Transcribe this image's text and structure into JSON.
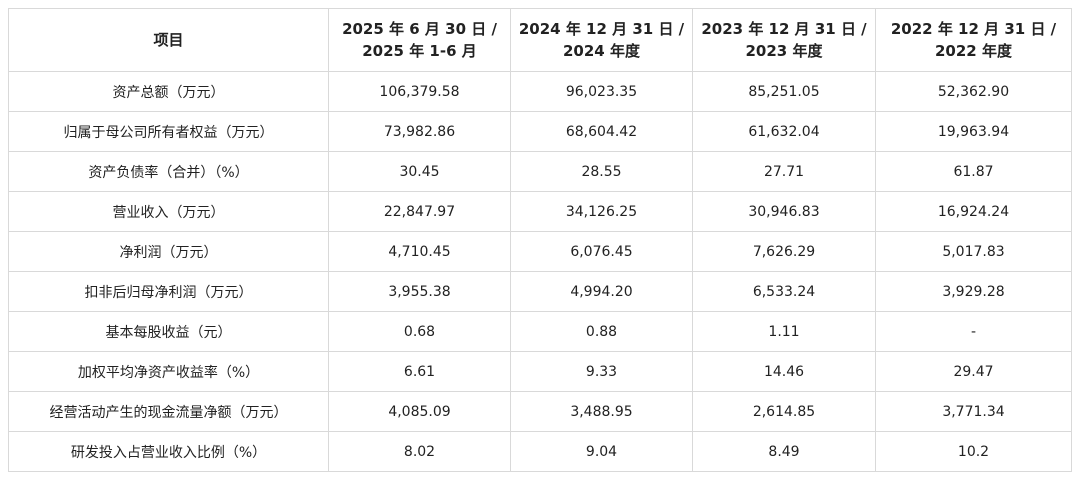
{
  "table": {
    "header": [
      [
        "项目"
      ],
      [
        "2025 年 6 月 30 日 /",
        "2025 年 1-6 月"
      ],
      [
        "2024 年 12 月 31 日 /",
        "2024 年度"
      ],
      [
        "2023 年 12 月 31 日 /",
        "2023 年度"
      ],
      [
        "2022 年 12 月 31 日 /",
        "2022 年度"
      ]
    ],
    "rows": [
      [
        "资产总额（万元）",
        "106,379.58",
        "96,023.35",
        "85,251.05",
        "52,362.90"
      ],
      [
        "归属于母公司所有者权益（万元）",
        "73,982.86",
        "68,604.42",
        "61,632.04",
        "19,963.94"
      ],
      [
        "资产负债率（合并）（%）",
        "30.45",
        "28.55",
        "27.71",
        "61.87"
      ],
      [
        "营业收入（万元）",
        "22,847.97",
        "34,126.25",
        "30,946.83",
        "16,924.24"
      ],
      [
        "净利润（万元）",
        "4,710.45",
        "6,076.45",
        "7,626.29",
        "5,017.83"
      ],
      [
        "扣非后归母净利润（万元）",
        "3,955.38",
        "4,994.20",
        "6,533.24",
        "3,929.28"
      ],
      [
        "基本每股收益（元）",
        "0.68",
        "0.88",
        "1.11",
        "-"
      ],
      [
        "加权平均净资产收益率（%）",
        "6.61",
        "9.33",
        "14.46",
        "29.47"
      ],
      [
        "经营活动产生的现金流量净额（万元）",
        "4,085.09",
        "3,488.95",
        "2,614.85",
        "3,771.34"
      ],
      [
        "研发投入占营业收入比例（%）",
        "8.02",
        "9.04",
        "8.49",
        "10.2"
      ]
    ]
  }
}
